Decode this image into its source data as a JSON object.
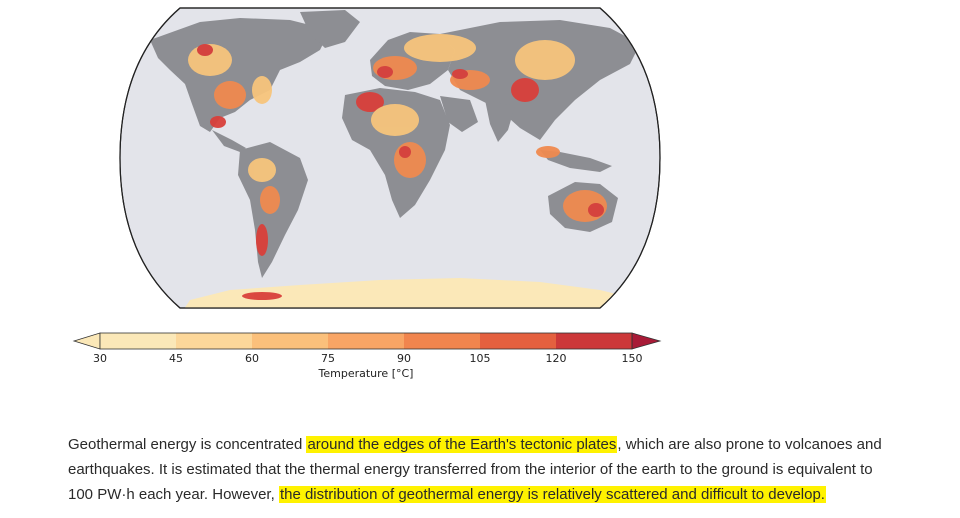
{
  "colorbar": {
    "ticks": [
      "30",
      "45",
      "60",
      "75",
      "90",
      "105",
      "120",
      "150"
    ],
    "title": "Temperature [°C]",
    "colors": [
      "#fbe8b8",
      "#fcd79a",
      "#fbc07b",
      "#f8a565",
      "#f1854e",
      "#e4603f",
      "#cc3839",
      "#a81b37"
    ]
  },
  "map": {
    "ocean_color": "#e3e4ea",
    "land_color": "#8d8e93",
    "hot_colors": [
      "#f7c57c",
      "#f08a4f",
      "#d9403a"
    ]
  },
  "paragraph": {
    "l1_a": "Geothermal energy is concentrated ",
    "l1_hl": "around the edges of the Earth's tectonic plates",
    "l1_b": ", which are also prone to volcanoes and",
    "l2": "earthquakes. It is estimated that the thermal energy transferred from the interior of the earth to the ground is equivalent to",
    "l3_a": "100 PW·h each year. However, ",
    "l3_hl": "the distribution of geothermal energy is relatively scattered and difficult to develop."
  }
}
